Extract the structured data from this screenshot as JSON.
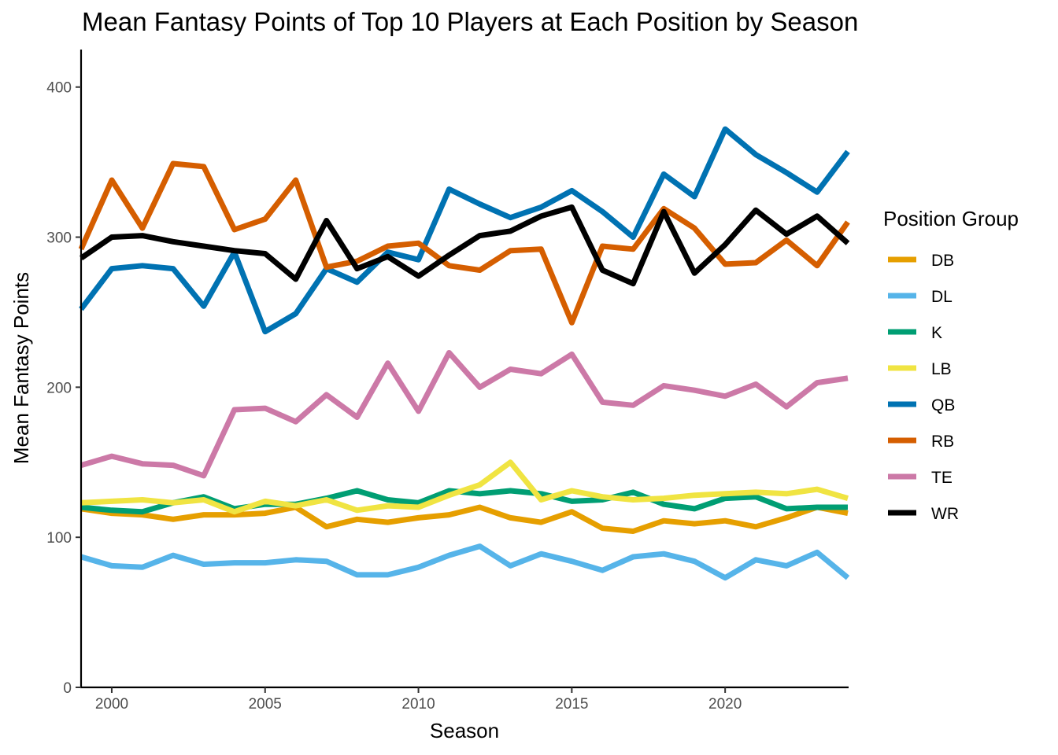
{
  "chart_data": {
    "type": "line",
    "title": "Mean Fantasy Points of Top 10 Players at Each Position by Season",
    "xlabel": "Season",
    "ylabel": "Mean Fantasy Points",
    "xlim": [
      1999,
      2024
    ],
    "ylim": [
      0,
      425
    ],
    "x_ticks": [
      2000,
      2005,
      2010,
      2015,
      2020
    ],
    "y_ticks": [
      0,
      100,
      200,
      300,
      400
    ],
    "grid": false,
    "legend": {
      "title": "Position Group",
      "position": "right"
    },
    "x": [
      1999,
      2000,
      2001,
      2002,
      2003,
      2004,
      2005,
      2006,
      2007,
      2008,
      2009,
      2010,
      2011,
      2012,
      2013,
      2014,
      2015,
      2016,
      2017,
      2018,
      2019,
      2020,
      2021,
      2022,
      2023,
      2024
    ],
    "series": [
      {
        "name": "DB",
        "color": "#E69F00",
        "values": [
          119,
          116,
          115,
          112,
          115,
          115,
          116,
          120,
          107,
          112,
          110,
          113,
          115,
          120,
          113,
          110,
          117,
          106,
          104,
          111,
          109,
          111,
          107,
          113,
          120,
          116
        ]
      },
      {
        "name": "DL",
        "color": "#56B4E9",
        "values": [
          87,
          81,
          80,
          88,
          82,
          83,
          83,
          85,
          84,
          75,
          75,
          80,
          88,
          94,
          81,
          89,
          84,
          78,
          87,
          89,
          84,
          73,
          85,
          81,
          90,
          73
        ]
      },
      {
        "name": "K",
        "color": "#009E73",
        "values": [
          120,
          118,
          117,
          123,
          127,
          119,
          122,
          122,
          126,
          131,
          125,
          123,
          131,
          129,
          131,
          129,
          124,
          125,
          130,
          122,
          119,
          126,
          127,
          119,
          120,
          120
        ]
      },
      {
        "name": "LB",
        "color": "#F0E442",
        "values": [
          123,
          124,
          125,
          123,
          125,
          117,
          124,
          121,
          125,
          118,
          121,
          120,
          128,
          135,
          150,
          125,
          131,
          127,
          125,
          126,
          128,
          129,
          130,
          129,
          132,
          126
        ]
      },
      {
        "name": "QB",
        "color": "#0072B2",
        "values": [
          252,
          279,
          281,
          279,
          254,
          290,
          237,
          249,
          279,
          270,
          290,
          285,
          332,
          322,
          313,
          320,
          331,
          317,
          300,
          342,
          327,
          372,
          355,
          343,
          330,
          357
        ]
      },
      {
        "name": "RB",
        "color": "#D55E00",
        "values": [
          292,
          338,
          306,
          349,
          347,
          305,
          312,
          338,
          280,
          284,
          294,
          296,
          281,
          278,
          291,
          292,
          243,
          294,
          292,
          319,
          306,
          282,
          283,
          298,
          281,
          310
        ]
      },
      {
        "name": "TE",
        "color": "#CC79A7",
        "values": [
          148,
          154,
          149,
          148,
          141,
          185,
          186,
          177,
          195,
          180,
          216,
          184,
          223,
          200,
          212,
          209,
          222,
          190,
          188,
          201,
          198,
          194,
          202,
          187,
          203,
          206
        ]
      },
      {
        "name": "WR",
        "color": "#000000",
        "values": [
          286,
          300,
          301,
          297,
          294,
          291,
          289,
          272,
          311,
          279,
          287,
          274,
          288,
          301,
          304,
          314,
          320,
          278,
          269,
          317,
          276,
          295,
          318,
          302,
          314,
          296
        ]
      }
    ]
  }
}
